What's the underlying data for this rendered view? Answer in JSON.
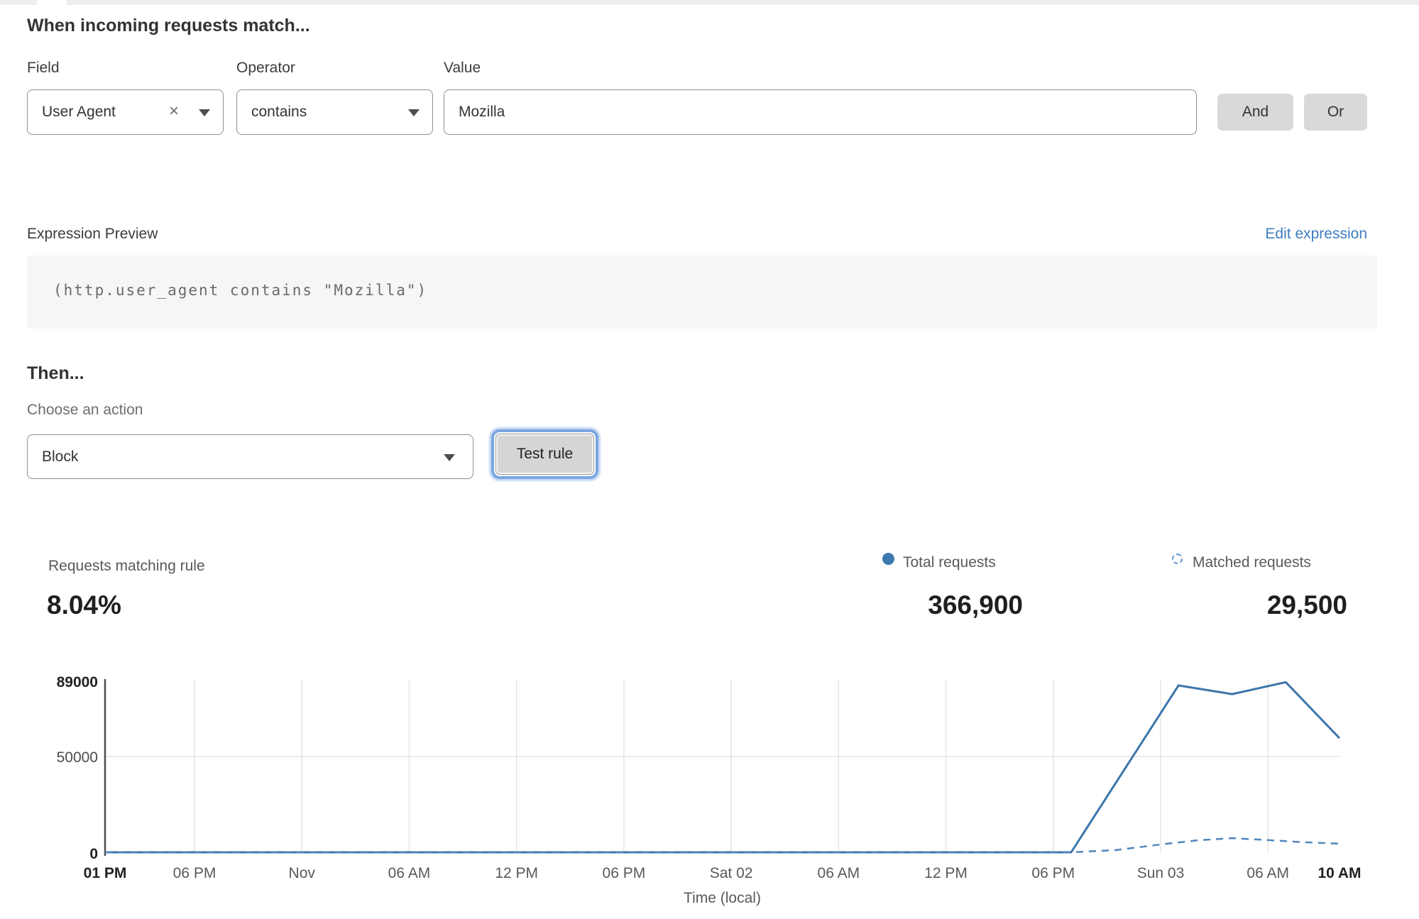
{
  "rule_builder": {
    "heading": "When incoming requests match...",
    "field": {
      "label": "Field",
      "value": "User Agent",
      "clear_icon": "×"
    },
    "operator": {
      "label": "Operator",
      "value": "contains"
    },
    "value": {
      "label": "Value",
      "value": "Mozilla"
    },
    "and_label": "And",
    "or_label": "Or"
  },
  "expression": {
    "label": "Expression Preview",
    "edit_link": "Edit expression",
    "code": "(http.user_agent contains \"Mozilla\")"
  },
  "action": {
    "heading": "Then...",
    "label": "Choose an action",
    "selected": "Block",
    "test_button": "Test rule"
  },
  "stats": {
    "matching": {
      "label": "Requests matching rule",
      "value": "8.04%"
    },
    "total": {
      "label": "Total requests",
      "value": "366,900",
      "icon": "solid-dot",
      "color": "#3c79b0"
    },
    "matched": {
      "label": "Matched requests",
      "value": "29,500",
      "icon": "dashed-circle",
      "color": "#5f97d2"
    }
  },
  "colors": {
    "link_blue": "#3f7dc0",
    "chart_total_line": "#3d76ab",
    "chart_matched_line": "#4e86bd",
    "grid_line": "#e4e4e4",
    "axis_line": "#4d4d4d"
  },
  "chart_data": {
    "type": "line",
    "xlabel": "Time (local)",
    "ylabel": "",
    "ylim": [
      0,
      89000
    ],
    "grid": "vertical gridlines at each x tick; horizontal gridline at 50000",
    "legend_position": "top-right above chart (with stat values)",
    "x_unit": "hours from first tick (01 PM)",
    "x_ticks": [
      {
        "t": 0,
        "label": "01 PM",
        "bold": true
      },
      {
        "t": 5,
        "label": "06 PM"
      },
      {
        "t": 11,
        "label": "Nov"
      },
      {
        "t": 17,
        "label": "06 AM"
      },
      {
        "t": 23,
        "label": "12 PM"
      },
      {
        "t": 29,
        "label": "06 PM"
      },
      {
        "t": 35,
        "label": "Sat 02"
      },
      {
        "t": 41,
        "label": "06 AM"
      },
      {
        "t": 47,
        "label": "12 PM"
      },
      {
        "t": 53,
        "label": "06 PM"
      },
      {
        "t": 59,
        "label": "Sun 03"
      },
      {
        "t": 65,
        "label": "06 AM"
      },
      {
        "t": 69,
        "label": "10 AM",
        "bold": true
      }
    ],
    "y_ticks": [
      {
        "v": 0,
        "label": "0",
        "bold": true
      },
      {
        "v": 50000,
        "label": "50000",
        "bold": false
      },
      {
        "v": 89000,
        "label": "89000",
        "bold": true
      }
    ],
    "series": [
      {
        "name": "Total requests",
        "style": "solid",
        "color": "#3d76ab",
        "points": [
          [
            0,
            200
          ],
          [
            54,
            300
          ],
          [
            60,
            86800
          ],
          [
            63,
            82300
          ],
          [
            66,
            88500
          ],
          [
            69,
            59500
          ]
        ]
      },
      {
        "name": "Matched requests",
        "style": "dashed",
        "color": "#4e86bd",
        "points": [
          [
            0,
            150
          ],
          [
            54,
            200
          ],
          [
            56.5,
            1500
          ],
          [
            59,
            4400
          ],
          [
            61,
            6500
          ],
          [
            63,
            7700
          ],
          [
            65,
            6700
          ],
          [
            67,
            5600
          ],
          [
            69,
            4800
          ]
        ]
      }
    ]
  }
}
